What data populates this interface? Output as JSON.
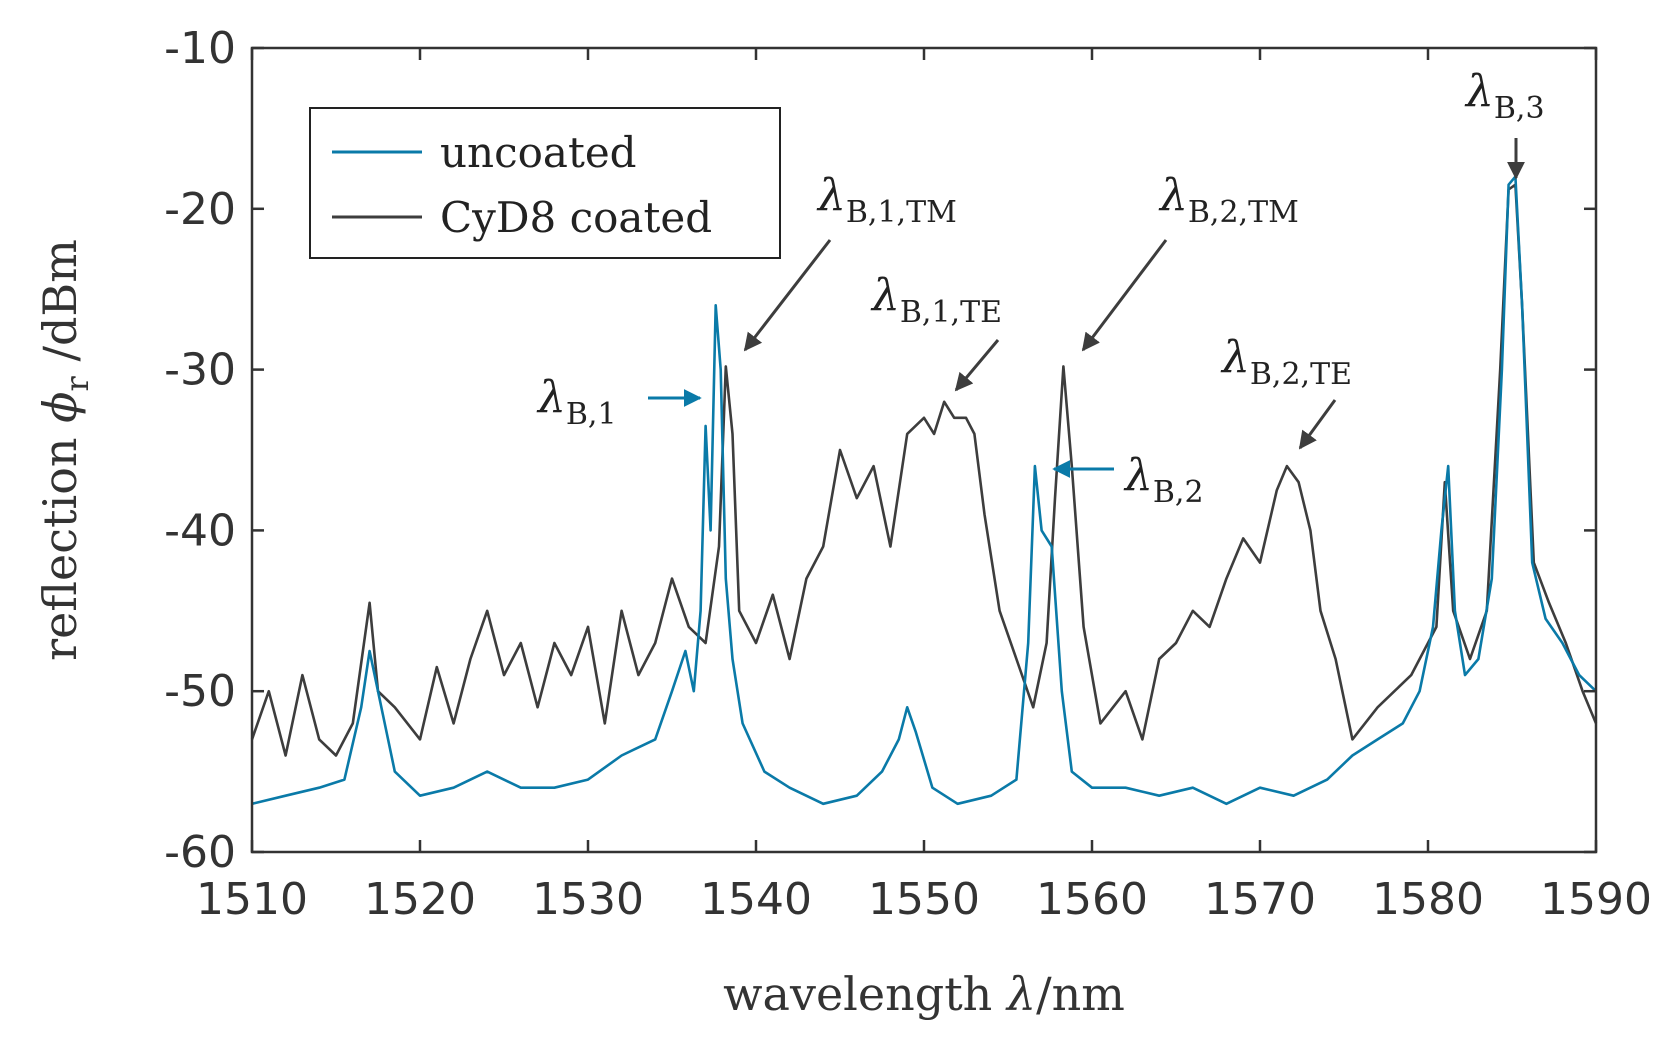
{
  "chart_data": {
    "type": "line",
    "xlabel_text": "wavelength ",
    "xlabel_symbol": "λ",
    "xlabel_unit": "/nm",
    "ylabel_text": "reflection ",
    "ylabel_symbol": "ϕ",
    "ylabel_sub": "r",
    "ylabel_unit": " /dBm",
    "xlim": [
      1510,
      1590
    ],
    "ylim": [
      -60,
      -10
    ],
    "xticks": [
      1510,
      1520,
      1530,
      1540,
      1550,
      1560,
      1570,
      1580,
      1590
    ],
    "yticks": [
      -10,
      -20,
      -30,
      -40,
      -50,
      -60
    ],
    "grid": false,
    "legend_position": "top-left",
    "colors": {
      "uncoated": "#0a7aa8",
      "coated": "#3d3d3d"
    },
    "series": [
      {
        "name": "uncoated",
        "color": "#0a7aa8",
        "points": [
          [
            1510,
            -57
          ],
          [
            1512,
            -56.5
          ],
          [
            1514,
            -56
          ],
          [
            1515.5,
            -55.5
          ],
          [
            1516.5,
            -51
          ],
          [
            1517,
            -47.5
          ],
          [
            1517.5,
            -50
          ],
          [
            1518.5,
            -55
          ],
          [
            1520,
            -56.5
          ],
          [
            1522,
            -56
          ],
          [
            1524,
            -55
          ],
          [
            1526,
            -56
          ],
          [
            1528,
            -56
          ],
          [
            1530,
            -55.5
          ],
          [
            1532,
            -54
          ],
          [
            1534,
            -53
          ],
          [
            1535,
            -50
          ],
          [
            1535.8,
            -47.5
          ],
          [
            1536.3,
            -50
          ],
          [
            1536.7,
            -45
          ],
          [
            1537,
            -33.5
          ],
          [
            1537.3,
            -40
          ],
          [
            1537.6,
            -26
          ],
          [
            1537.9,
            -30
          ],
          [
            1538.2,
            -43
          ],
          [
            1538.6,
            -48
          ],
          [
            1539.2,
            -52
          ],
          [
            1540.5,
            -55
          ],
          [
            1542,
            -56
          ],
          [
            1544,
            -57
          ],
          [
            1546,
            -56.5
          ],
          [
            1547.5,
            -55
          ],
          [
            1548.5,
            -53
          ],
          [
            1549,
            -51
          ],
          [
            1549.5,
            -52.5
          ],
          [
            1550.5,
            -56
          ],
          [
            1552,
            -57
          ],
          [
            1554,
            -56.5
          ],
          [
            1555.5,
            -55.5
          ],
          [
            1556.2,
            -47
          ],
          [
            1556.6,
            -36
          ],
          [
            1557,
            -40
          ],
          [
            1557.6,
            -41
          ],
          [
            1558.2,
            -50
          ],
          [
            1558.8,
            -55
          ],
          [
            1560,
            -56
          ],
          [
            1562,
            -56
          ],
          [
            1564,
            -56.5
          ],
          [
            1566,
            -56
          ],
          [
            1568,
            -57
          ],
          [
            1570,
            -56
          ],
          [
            1572,
            -56.5
          ],
          [
            1574,
            -55.5
          ],
          [
            1575.5,
            -54
          ],
          [
            1577,
            -53
          ],
          [
            1578.5,
            -52
          ],
          [
            1579.5,
            -50
          ],
          [
            1580.3,
            -46
          ],
          [
            1580.8,
            -40
          ],
          [
            1581.2,
            -36
          ],
          [
            1581.6,
            -45
          ],
          [
            1582.2,
            -49
          ],
          [
            1583,
            -48
          ],
          [
            1583.8,
            -43
          ],
          [
            1584.4,
            -30
          ],
          [
            1584.8,
            -18.5
          ],
          [
            1585.2,
            -18
          ],
          [
            1585.6,
            -26
          ],
          [
            1586.2,
            -42
          ],
          [
            1587,
            -45.5
          ],
          [
            1588,
            -47
          ],
          [
            1589,
            -49
          ],
          [
            1590,
            -50
          ]
        ]
      },
      {
        "name": "CyD8 coated",
        "color": "#3d3d3d",
        "points": [
          [
            1510,
            -53
          ],
          [
            1511,
            -50
          ],
          [
            1512,
            -54
          ],
          [
            1513,
            -49
          ],
          [
            1514,
            -53
          ],
          [
            1515,
            -54
          ],
          [
            1516,
            -52
          ],
          [
            1517,
            -44.5
          ],
          [
            1517.5,
            -50
          ],
          [
            1518.5,
            -51
          ],
          [
            1520,
            -53
          ],
          [
            1521,
            -48.5
          ],
          [
            1522,
            -52
          ],
          [
            1523,
            -48
          ],
          [
            1524,
            -45
          ],
          [
            1525,
            -49
          ],
          [
            1526,
            -47
          ],
          [
            1527,
            -51
          ],
          [
            1528,
            -47
          ],
          [
            1529,
            -49
          ],
          [
            1530,
            -46
          ],
          [
            1531,
            -52
          ],
          [
            1532,
            -45
          ],
          [
            1533,
            -49
          ],
          [
            1534,
            -47
          ],
          [
            1535,
            -43
          ],
          [
            1536,
            -46
          ],
          [
            1537,
            -47
          ],
          [
            1537.8,
            -41
          ],
          [
            1538.2,
            -29.8
          ],
          [
            1538.6,
            -34
          ],
          [
            1539,
            -45
          ],
          [
            1540,
            -47
          ],
          [
            1541,
            -44
          ],
          [
            1542,
            -48
          ],
          [
            1543,
            -43
          ],
          [
            1544,
            -41
          ],
          [
            1545,
            -35
          ],
          [
            1546,
            -38
          ],
          [
            1547,
            -36
          ],
          [
            1548,
            -41
          ],
          [
            1549,
            -34
          ],
          [
            1550,
            -33
          ],
          [
            1550.6,
            -34
          ],
          [
            1551.2,
            -32
          ],
          [
            1551.8,
            -33
          ],
          [
            1552.5,
            -33
          ],
          [
            1553,
            -34
          ],
          [
            1553.6,
            -39
          ],
          [
            1554.5,
            -45
          ],
          [
            1555.5,
            -48
          ],
          [
            1556.5,
            -51
          ],
          [
            1557.3,
            -47
          ],
          [
            1557.8,
            -38
          ],
          [
            1558.3,
            -29.8
          ],
          [
            1558.8,
            -36
          ],
          [
            1559.5,
            -46
          ],
          [
            1560.5,
            -52
          ],
          [
            1562,
            -50
          ],
          [
            1563,
            -53
          ],
          [
            1564,
            -48
          ],
          [
            1565,
            -47
          ],
          [
            1566,
            -45
          ],
          [
            1567,
            -46
          ],
          [
            1568,
            -43
          ],
          [
            1569,
            -40.5
          ],
          [
            1570,
            -42
          ],
          [
            1571,
            -37.5
          ],
          [
            1571.6,
            -36
          ],
          [
            1572.3,
            -37
          ],
          [
            1573,
            -40
          ],
          [
            1573.6,
            -45
          ],
          [
            1574.5,
            -48
          ],
          [
            1575.5,
            -53
          ],
          [
            1577,
            -51
          ],
          [
            1578,
            -50
          ],
          [
            1579,
            -49
          ],
          [
            1580.5,
            -46
          ],
          [
            1581,
            -37
          ],
          [
            1581.5,
            -45
          ],
          [
            1582.5,
            -48
          ],
          [
            1583.5,
            -45
          ],
          [
            1584.3,
            -30
          ],
          [
            1584.8,
            -18.8
          ],
          [
            1585.2,
            -18.5
          ],
          [
            1585.6,
            -26
          ],
          [
            1586.3,
            -42
          ],
          [
            1587.2,
            -44.5
          ],
          [
            1588.2,
            -47
          ],
          [
            1589.2,
            -50
          ],
          [
            1590,
            -52
          ]
        ]
      }
    ],
    "annotations": [
      {
        "id": "ann-b1",
        "main": "λ",
        "sub": "B,1",
        "x": 1537.3,
        "y": -31.8,
        "color": "#0a7aa8"
      },
      {
        "id": "ann-b1tm",
        "main": "λ",
        "sub": "B,1,TM",
        "x": 1539.0,
        "y": -32.0,
        "color": "#3d3d3d"
      },
      {
        "id": "ann-b1te",
        "main": "λ",
        "sub": "B,1,TE",
        "x": 1551.2,
        "y": -31.3,
        "color": "#3d3d3d"
      },
      {
        "id": "ann-b2tm",
        "main": "λ",
        "sub": "B,2,TM",
        "x": 1558.8,
        "y": -32.0,
        "color": "#3d3d3d"
      },
      {
        "id": "ann-b2",
        "main": "λ",
        "sub": "B,2",
        "x": 1557.0,
        "y": -36.5,
        "color": "#0a7aa8"
      },
      {
        "id": "ann-b2te",
        "main": "λ",
        "sub": "B,2,TE",
        "x": 1572.0,
        "y": -35.0,
        "color": "#3d3d3d"
      },
      {
        "id": "ann-b3",
        "main": "λ",
        "sub": "B,3",
        "x": 1585.0,
        "y": -18.0,
        "color": "#3d3d3d"
      }
    ]
  }
}
